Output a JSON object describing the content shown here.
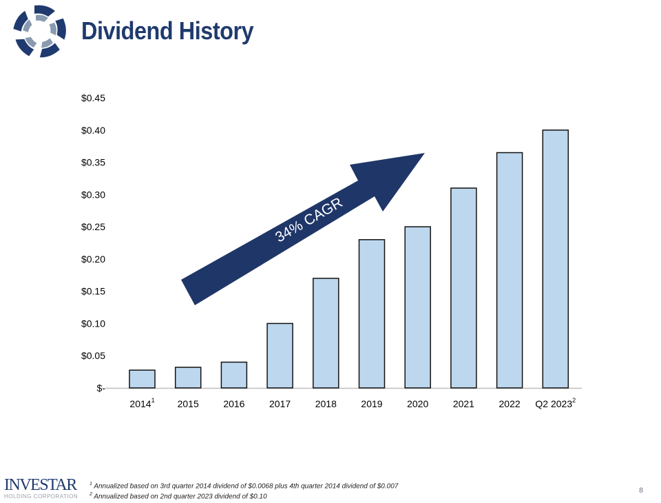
{
  "header": {
    "title": "Dividend History"
  },
  "chart_data": {
    "type": "bar",
    "title": "",
    "categories": [
      "2014",
      "2015",
      "2016",
      "2017",
      "2018",
      "2019",
      "2020",
      "2021",
      "2022",
      "Q2 2023"
    ],
    "category_superscripts": [
      "1",
      "",
      "",
      "",
      "",
      "",
      "",
      "",
      "",
      "2"
    ],
    "values": [
      0.0276,
      0.032,
      0.04,
      0.1,
      0.17,
      0.23,
      0.25,
      0.31,
      0.365,
      0.4
    ],
    "ylim": [
      0,
      0.45
    ],
    "yticks": [
      0,
      0.05,
      0.1,
      0.15,
      0.2,
      0.25,
      0.3,
      0.35,
      0.4,
      0.45
    ],
    "ytick_labels": [
      "$-",
      "$0.05",
      "$0.10",
      "$0.15",
      "$0.20",
      "$0.25",
      "$0.30",
      "$0.35",
      "$0.40",
      "$0.45"
    ],
    "xlabel": "",
    "ylabel": "",
    "grid": false,
    "bar_color": "#bdd7ee",
    "annotation": {
      "text": "34% CAGR",
      "color": "#1f3668"
    }
  },
  "footnotes": [
    {
      "mark": "1",
      "text": "Annualized  based on 3rd quarter 2014 dividend of $0.0068 plus 4th quarter 2014 dividend of $0.007"
    },
    {
      "mark": "2",
      "text": "Annualized  based on 2nd quarter 2023 dividend  of $0.10"
    }
  ],
  "brand": {
    "name": "INVESTAR",
    "sub": "HOLDING CORPORATION"
  },
  "page_number": "8"
}
